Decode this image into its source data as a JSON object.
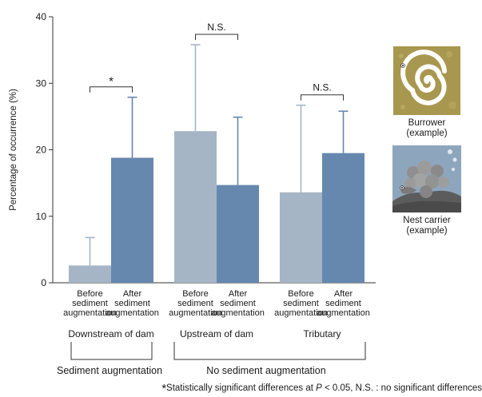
{
  "chart_data": {
    "type": "bar",
    "ylabel": "Percentage of occurrence (%)",
    "ylim": [
      0,
      40
    ],
    "yticks": [
      "0",
      "10",
      "20",
      "30",
      "40"
    ],
    "grid": false,
    "groups": [
      {
        "name": "Downstream of dam",
        "significance": "*"
      },
      {
        "name": "Upstream of dam",
        "significance": "N.S."
      },
      {
        "name": "Tributary",
        "significance": "N.S."
      }
    ],
    "series": [
      {
        "name": "Before sediment augmentation",
        "color": "#a6b5c5",
        "values": [
          2.6,
          22.8,
          13.6
        ],
        "error_upper": [
          6.8,
          35.8,
          26.7
        ]
      },
      {
        "name": "After sediment augmentation",
        "color": "#6688ae",
        "values": [
          18.8,
          14.7,
          19.5
        ],
        "error_upper": [
          27.9,
          24.9,
          25.8
        ]
      }
    ],
    "bar_labels": [
      [
        "Before",
        "sediment",
        "augmentation"
      ],
      [
        "After",
        "sediment",
        "augmentation"
      ]
    ],
    "treatments": [
      {
        "label": "Sediment augmentation",
        "groups": [
          0
        ]
      },
      {
        "label": "No sediment augmentation",
        "groups": [
          1,
          2
        ]
      }
    ]
  },
  "icons": [
    {
      "name": "burrower-icon",
      "caption_line1": "Burrower",
      "caption_line2": "(example)"
    },
    {
      "name": "nest-carrier-icon",
      "caption_line1": "Nest carrier",
      "caption_line2": "(example)"
    }
  ],
  "footnote": {
    "star": "*",
    "text_pre": "Statistically significant differences at ",
    "p_symbol": "P",
    "text_post": " < 0.05, N.S. : no significant differences"
  }
}
